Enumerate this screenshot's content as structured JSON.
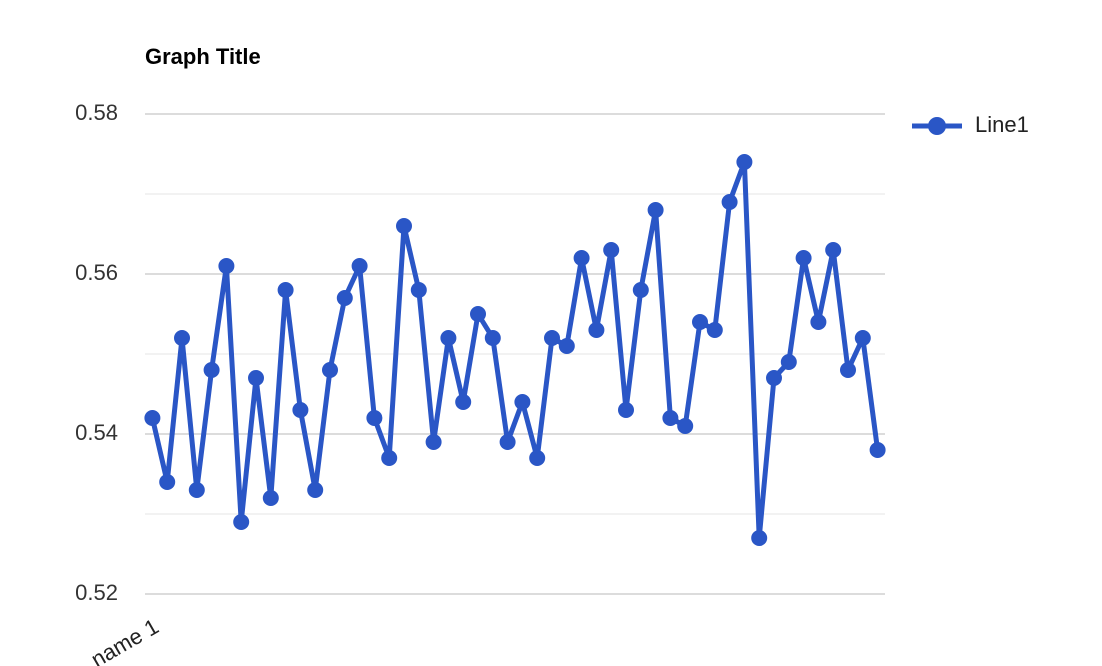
{
  "chart_data": {
    "type": "line",
    "title": "Graph Title",
    "categories": [
      "name 1",
      null,
      null,
      null,
      null,
      null,
      null,
      null,
      null,
      null,
      null,
      null,
      null,
      null,
      null,
      null,
      null,
      null,
      null,
      null,
      null,
      null,
      null,
      null,
      null,
      null,
      null,
      null,
      null,
      null,
      null,
      null,
      null,
      null,
      null,
      null,
      null,
      null,
      null,
      null,
      null,
      null,
      null,
      null,
      null,
      null,
      null,
      null,
      null,
      null
    ],
    "series": [
      {
        "name": "Line1",
        "color": "#2a56c6",
        "values": [
          0.542,
          0.534,
          0.552,
          0.533,
          0.548,
          0.561,
          0.529,
          0.547,
          0.532,
          0.558,
          0.543,
          0.533,
          0.548,
          0.557,
          0.561,
          0.542,
          0.537,
          0.566,
          0.558,
          0.539,
          0.552,
          0.544,
          0.555,
          0.552,
          0.539,
          0.544,
          0.537,
          0.552,
          0.551,
          0.562,
          0.553,
          0.563,
          0.543,
          0.558,
          0.568,
          0.542,
          0.541,
          0.554,
          0.553,
          0.569,
          0.574,
          0.527,
          0.547,
          0.549,
          0.562,
          0.554,
          0.563,
          0.548,
          0.552,
          0.538
        ]
      }
    ],
    "ylim": [
      0.52,
      0.58
    ],
    "yticks": [
      0.52,
      0.54,
      0.56,
      0.58
    ],
    "minor_yticks": [
      0.53,
      0.55,
      0.57
    ],
    "grid": true,
    "legend": "right"
  }
}
